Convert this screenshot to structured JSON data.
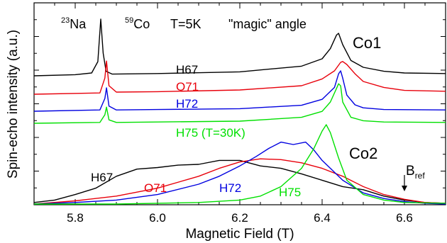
{
  "chart_data": {
    "type": "line",
    "xlabel": "Magnetic Field (T)",
    "ylabel": "Spin-echo intensity (a.u.)",
    "xlim": [
      5.7,
      6.7
    ],
    "x_ticks": [
      "5.8",
      "6.0",
      "6.2",
      "6.4",
      "6.6"
    ],
    "grid": false,
    "annotations": {
      "na_sup": "23",
      "na": "Na",
      "co_sup": "59",
      "co": "Co",
      "temp": "T=5K",
      "angle": "\"magic\" angle",
      "co1": "Co1",
      "co2": "Co2",
      "bref": "B",
      "bref_sub": "ref"
    },
    "colors": {
      "H67": "#000000",
      "O71": "#e8000b",
      "H72": "#0000e0",
      "H75": "#00e000"
    },
    "upper_series": [
      {
        "name": "H67",
        "label": "H67",
        "x": [
          5.7,
          5.8,
          5.84,
          5.855,
          5.862,
          5.868,
          5.875,
          5.89,
          6.0,
          6.2,
          6.35,
          6.4,
          6.42,
          6.435,
          6.44,
          6.45,
          6.47,
          6.5,
          6.55,
          6.6,
          6.7
        ],
        "y": [
          0.0,
          0.02,
          0.05,
          0.25,
          1.0,
          0.4,
          0.08,
          0.03,
          0.04,
          0.07,
          0.17,
          0.3,
          0.48,
          0.72,
          0.75,
          0.55,
          0.27,
          0.15,
          0.08,
          0.05,
          0.04
        ]
      },
      {
        "name": "O71",
        "label": "O71",
        "x": [
          5.7,
          5.86,
          5.872,
          5.876,
          5.882,
          5.9,
          6.0,
          6.2,
          6.35,
          6.4,
          6.43,
          6.445,
          6.45,
          6.46,
          6.48,
          6.5,
          6.55,
          6.6,
          6.7
        ],
        "y": [
          0.0,
          0.03,
          0.38,
          0.78,
          0.2,
          0.05,
          0.06,
          0.1,
          0.2,
          0.36,
          0.55,
          0.75,
          0.77,
          0.7,
          0.48,
          0.3,
          0.16,
          0.09,
          0.07
        ]
      },
      {
        "name": "H72",
        "label": "H72",
        "x": [
          5.7,
          5.86,
          5.872,
          5.876,
          5.882,
          5.9,
          6.0,
          6.2,
          6.35,
          6.4,
          6.43,
          6.44,
          6.445,
          6.45,
          6.46,
          6.48,
          6.5,
          6.55,
          6.7
        ],
        "y": [
          0.0,
          0.03,
          0.3,
          0.55,
          0.12,
          0.03,
          0.04,
          0.06,
          0.14,
          0.28,
          0.56,
          0.88,
          0.95,
          0.78,
          0.38,
          0.15,
          0.08,
          0.04,
          0.03
        ]
      },
      {
        "name": "H75",
        "label": "H75 (T=30K)",
        "x": [
          5.7,
          5.86,
          5.872,
          5.876,
          5.882,
          5.9,
          6.0,
          6.2,
          6.35,
          6.4,
          6.42,
          6.435,
          6.44,
          6.445,
          6.45,
          6.47,
          6.5,
          6.55,
          6.7
        ],
        "y": [
          0.0,
          0.02,
          0.2,
          0.38,
          0.08,
          0.02,
          0.03,
          0.05,
          0.14,
          0.28,
          0.5,
          0.82,
          0.93,
          0.88,
          0.5,
          0.14,
          0.06,
          0.03,
          0.02
        ]
      }
    ],
    "lower_series": [
      {
        "name": "H67",
        "label": "H67",
        "x": [
          5.7,
          5.75,
          5.8,
          5.85,
          5.9,
          5.95,
          6.0,
          6.05,
          6.1,
          6.15,
          6.2,
          6.25,
          6.3,
          6.35,
          6.4,
          6.45,
          6.5,
          6.55,
          6.6,
          6.65,
          6.7
        ],
        "y": [
          0.02,
          0.05,
          0.12,
          0.2,
          0.35,
          0.44,
          0.46,
          0.49,
          0.5,
          0.55,
          0.55,
          0.48,
          0.45,
          0.38,
          0.3,
          0.22,
          0.18,
          0.1,
          0.05,
          0.02,
          0.01
        ]
      },
      {
        "name": "O71",
        "label": "O71",
        "x": [
          5.7,
          5.8,
          5.9,
          6.0,
          6.1,
          6.15,
          6.2,
          6.25,
          6.3,
          6.35,
          6.4,
          6.45,
          6.5,
          6.55,
          6.6,
          6.65,
          6.7
        ],
        "y": [
          0.0,
          0.04,
          0.1,
          0.2,
          0.35,
          0.45,
          0.53,
          0.57,
          0.56,
          0.52,
          0.45,
          0.35,
          0.22,
          0.12,
          0.06,
          0.02,
          0.01
        ]
      },
      {
        "name": "H72",
        "label": "H72",
        "x": [
          5.7,
          5.8,
          5.9,
          6.0,
          6.1,
          6.15,
          6.2,
          6.24,
          6.27,
          6.3,
          6.33,
          6.36,
          6.38,
          6.4,
          6.45,
          6.5,
          6.55,
          6.6,
          6.65,
          6.7
        ],
        "y": [
          0.0,
          0.02,
          0.05,
          0.12,
          0.25,
          0.35,
          0.48,
          0.6,
          0.7,
          0.78,
          0.75,
          0.78,
          0.68,
          0.55,
          0.3,
          0.14,
          0.07,
          0.03,
          0.01,
          0.0
        ]
      },
      {
        "name": "H75",
        "label": "H75",
        "x": [
          5.7,
          5.9,
          6.1,
          6.2,
          6.25,
          6.3,
          6.35,
          6.38,
          6.4,
          6.41,
          6.42,
          6.44,
          6.46,
          6.5,
          6.55,
          6.6,
          6.7
        ],
        "y": [
          0.0,
          0.0,
          0.02,
          0.05,
          0.1,
          0.22,
          0.45,
          0.7,
          0.92,
          1.0,
          0.9,
          0.58,
          0.3,
          0.12,
          0.05,
          0.02,
          0.01
        ]
      }
    ]
  }
}
